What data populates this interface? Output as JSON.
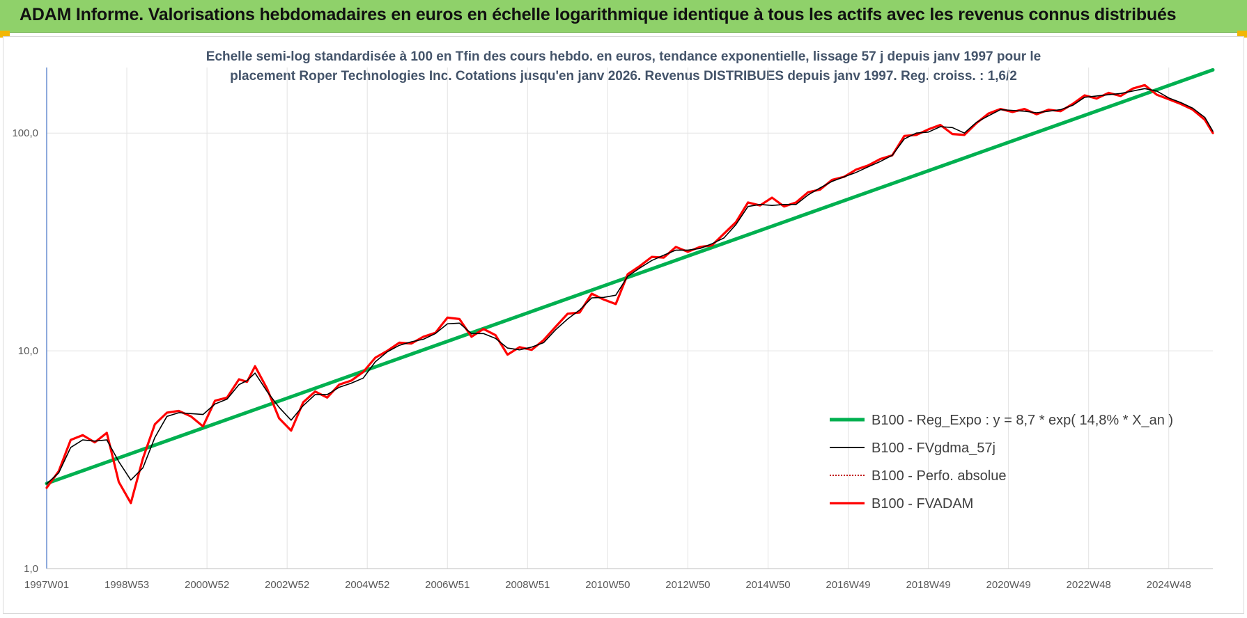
{
  "header": {
    "title": "ADAM Informe. Valorisations hebdomadaires en euros en échelle logarithmique identique à tous les actifs avec les revenus connus distribués"
  },
  "colors": {
    "banner": "#8fd16a",
    "accent_corner": "#f2b705",
    "regression": "#00b050",
    "smoothed": "#000000",
    "perf_absolue": "#c00000",
    "fvadam": "#ff0000",
    "subtitle": "#44546a"
  },
  "chart_data": {
    "type": "line",
    "title_lines": [
      "Echelle semi-log standardisée à 100 en Tfin des cours hebdo. en euros, tendance exponentielle, lissage 57 j depuis janv 1997 pour le",
      "placement Roper Technologies Inc. Cotations jusqu'en janv 2026. Revenus DISTRIBUES depuis janv 1997. Reg. croiss. : 1,6/2"
    ],
    "y_scale": "log",
    "ylim": [
      1,
      200
    ],
    "y_ticks": [
      {
        "value": 1,
        "label": "1,0"
      },
      {
        "value": 10,
        "label": "10,0"
      },
      {
        "value": 100,
        "label": "100,0"
      }
    ],
    "xlim": [
      1997.0,
      2026.1
    ],
    "x_ticks": [
      {
        "x": 1997.0,
        "label": "1997W01"
      },
      {
        "x": 1999.0,
        "label": "1998W53"
      },
      {
        "x": 2001.0,
        "label": "2000W52"
      },
      {
        "x": 2003.0,
        "label": "2002W52"
      },
      {
        "x": 2005.0,
        "label": "2004W52"
      },
      {
        "x": 2007.0,
        "label": "2006W51"
      },
      {
        "x": 2009.0,
        "label": "2008W51"
      },
      {
        "x": 2011.0,
        "label": "2010W50"
      },
      {
        "x": 2013.0,
        "label": "2012W50"
      },
      {
        "x": 2015.0,
        "label": "2014W50"
      },
      {
        "x": 2017.0,
        "label": "2016W49"
      },
      {
        "x": 2019.0,
        "label": "2018W49"
      },
      {
        "x": 2021.0,
        "label": "2020W49"
      },
      {
        "x": 2023.0,
        "label": "2022W48"
      },
      {
        "x": 2025.0,
        "label": "2024W48"
      }
    ],
    "grid": true,
    "legend_position": "bottom-right",
    "series": [
      {
        "name": "B100 - Reg_Expo : y = 8,7 * exp( 14,8% *  X_an )",
        "key": "reg",
        "x": [
          1997.0,
          2026.1
        ],
        "y": [
          2.46,
          195
        ]
      },
      {
        "name": "B100 - FVgdma_57j",
        "key": "sma",
        "x": [
          1997.0,
          1997.3,
          1997.6,
          1997.9,
          1998.2,
          1998.5,
          1998.8,
          1999.1,
          1999.4,
          1999.7,
          2000.0,
          2000.3,
          2000.6,
          2000.9,
          2001.2,
          2001.5,
          2001.8,
          2002.0,
          2002.2,
          2002.5,
          2002.8,
          2003.1,
          2003.4,
          2003.7,
          2004.0,
          2004.3,
          2004.6,
          2004.9,
          2005.2,
          2005.5,
          2005.8,
          2006.1,
          2006.4,
          2006.7,
          2007.0,
          2007.3,
          2007.6,
          2007.9,
          2008.2,
          2008.5,
          2008.8,
          2009.1,
          2009.4,
          2009.7,
          2010.0,
          2010.3,
          2010.6,
          2010.9,
          2011.2,
          2011.5,
          2011.8,
          2012.1,
          2012.4,
          2012.7,
          2013.0,
          2013.3,
          2013.6,
          2013.9,
          2014.2,
          2014.5,
          2014.8,
          2015.1,
          2015.4,
          2015.7,
          2016.0,
          2016.3,
          2016.6,
          2016.9,
          2017.2,
          2017.5,
          2017.8,
          2018.1,
          2018.4,
          2018.7,
          2019.0,
          2019.3,
          2019.6,
          2019.9,
          2020.2,
          2020.5,
          2020.8,
          2021.1,
          2021.4,
          2021.7,
          2022.0,
          2022.3,
          2022.6,
          2022.9,
          2023.2,
          2023.5,
          2023.8,
          2024.1,
          2024.4,
          2024.7,
          2025.0,
          2025.3,
          2025.6,
          2025.9,
          2026.1
        ],
        "y": [
          2.45,
          2.75,
          3.6,
          3.9,
          3.85,
          3.9,
          3.1,
          2.55,
          2.9,
          4.0,
          5.0,
          5.2,
          5.15,
          5.1,
          5.7,
          6.0,
          7.0,
          7.3,
          7.9,
          6.5,
          5.5,
          4.8,
          5.6,
          6.3,
          6.3,
          6.8,
          7.1,
          7.5,
          8.9,
          9.9,
          10.6,
          11.0,
          11.3,
          12.0,
          13.3,
          13.4,
          12.0,
          12.0,
          11.4,
          10.3,
          10.1,
          10.4,
          10.9,
          12.5,
          14.0,
          15.4,
          17.5,
          17.6,
          18.0,
          22.0,
          24.0,
          26.0,
          27.5,
          29.0,
          29.0,
          29.5,
          31.0,
          33.0,
          38.0,
          46.0,
          47.0,
          46.5,
          47.0,
          47.0,
          52.0,
          56.0,
          60.0,
          63.0,
          66.0,
          70.0,
          74.0,
          79.0,
          94.0,
          100.0,
          101.0,
          107.0,
          106.0,
          100.0,
          112.0,
          120.0,
          128.0,
          127.0,
          126.0,
          124.0,
          126.0,
          128.0,
          134.0,
          146.0,
          148.0,
          150.0,
          152.0,
          156.0,
          160.0,
          156.0,
          145.0,
          138.0,
          130.0,
          118.0,
          102.0
        ]
      },
      {
        "name": "B100 - Perfo. absolue",
        "key": "perf",
        "x": [
          1997.0,
          1997.3,
          1997.6,
          1997.9,
          1998.2,
          1998.5,
          1998.8,
          1999.1,
          1999.4,
          1999.7,
          2000.0,
          2000.3,
          2000.6,
          2000.9,
          2001.2,
          2001.5,
          2001.8,
          2002.0,
          2002.2,
          2002.5,
          2002.8,
          2003.1,
          2003.4,
          2003.7,
          2004.0,
          2004.3,
          2004.6,
          2004.9,
          2005.2,
          2005.5,
          2005.8,
          2006.1,
          2006.4,
          2006.7,
          2007.0,
          2007.3,
          2007.6,
          2007.9,
          2008.2,
          2008.5,
          2008.8,
          2009.1,
          2009.4,
          2009.7,
          2010.0,
          2010.3,
          2010.6,
          2010.9,
          2011.2,
          2011.5,
          2011.8,
          2012.1,
          2012.4,
          2012.7,
          2013.0,
          2013.3,
          2013.6,
          2013.9,
          2014.2,
          2014.5,
          2014.8,
          2015.1,
          2015.4,
          2015.7,
          2016.0,
          2016.3,
          2016.6,
          2016.9,
          2017.2,
          2017.5,
          2017.8,
          2018.1,
          2018.4,
          2018.7,
          2019.0,
          2019.3,
          2019.6,
          2019.9,
          2020.2,
          2020.5,
          2020.8,
          2021.1,
          2021.4,
          2021.7,
          2022.0,
          2022.3,
          2022.6,
          2022.9,
          2023.2,
          2023.5,
          2023.8,
          2024.1,
          2024.4,
          2024.7,
          2025.0,
          2025.3,
          2025.6,
          2025.9,
          2026.1
        ],
        "y": [
          2.35,
          2.8,
          3.9,
          4.1,
          3.8,
          4.2,
          2.5,
          2.0,
          3.2,
          4.6,
          5.2,
          5.3,
          5.0,
          4.5,
          5.9,
          6.1,
          7.4,
          7.2,
          8.5,
          6.7,
          4.9,
          4.3,
          5.8,
          6.5,
          6.1,
          7.0,
          7.3,
          8.0,
          9.3,
          10.0,
          10.9,
          10.8,
          11.6,
          12.1,
          14.2,
          14.0,
          11.6,
          12.6,
          11.8,
          9.6,
          10.4,
          10.1,
          11.2,
          12.9,
          14.8,
          15.0,
          18.3,
          17.2,
          16.4,
          22.5,
          24.5,
          27.0,
          26.8,
          30.0,
          28.5,
          30.0,
          30.5,
          34.5,
          39.0,
          48.0,
          46.5,
          50.5,
          46.0,
          48.0,
          53.5,
          55.0,
          61.0,
          63.0,
          68.0,
          71.0,
          76.0,
          79.0,
          97.0,
          98.0,
          104.0,
          109.0,
          99.0,
          98.0,
          111.0,
          123.0,
          129.0,
          125.0,
          129.0,
          122.0,
          128.0,
          126.0,
          136.0,
          149.0,
          144.0,
          153.0,
          148.0,
          160.0,
          166.0,
          150.0,
          143.0,
          136.0,
          128.0,
          115.0,
          100.0
        ]
      },
      {
        "name": "B100 - FVADAM",
        "key": "fvadam",
        "x": [
          1997.0,
          1997.3,
          1997.6,
          1997.9,
          1998.2,
          1998.5,
          1998.8,
          1999.1,
          1999.4,
          1999.7,
          2000.0,
          2000.3,
          2000.6,
          2000.9,
          2001.2,
          2001.5,
          2001.8,
          2002.0,
          2002.2,
          2002.5,
          2002.8,
          2003.1,
          2003.4,
          2003.7,
          2004.0,
          2004.3,
          2004.6,
          2004.9,
          2005.2,
          2005.5,
          2005.8,
          2006.1,
          2006.4,
          2006.7,
          2007.0,
          2007.3,
          2007.6,
          2007.9,
          2008.2,
          2008.5,
          2008.8,
          2009.1,
          2009.4,
          2009.7,
          2010.0,
          2010.3,
          2010.6,
          2010.9,
          2011.2,
          2011.5,
          2011.8,
          2012.1,
          2012.4,
          2012.7,
          2013.0,
          2013.3,
          2013.6,
          2013.9,
          2014.2,
          2014.5,
          2014.8,
          2015.1,
          2015.4,
          2015.7,
          2016.0,
          2016.3,
          2016.6,
          2016.9,
          2017.2,
          2017.5,
          2017.8,
          2018.1,
          2018.4,
          2018.7,
          2019.0,
          2019.3,
          2019.6,
          2019.9,
          2020.2,
          2020.5,
          2020.8,
          2021.1,
          2021.4,
          2021.7,
          2022.0,
          2022.3,
          2022.6,
          2022.9,
          2023.2,
          2023.5,
          2023.8,
          2024.1,
          2024.4,
          2024.7,
          2025.0,
          2025.3,
          2025.6,
          2025.9,
          2026.1
        ],
        "y": [
          2.35,
          2.8,
          3.9,
          4.1,
          3.8,
          4.2,
          2.5,
          2.0,
          3.2,
          4.6,
          5.2,
          5.3,
          5.0,
          4.5,
          5.9,
          6.1,
          7.4,
          7.2,
          8.5,
          6.7,
          4.9,
          4.3,
          5.8,
          6.5,
          6.1,
          7.0,
          7.3,
          8.0,
          9.3,
          10.0,
          10.9,
          10.8,
          11.6,
          12.1,
          14.2,
          14.0,
          11.6,
          12.6,
          11.8,
          9.6,
          10.4,
          10.1,
          11.2,
          12.9,
          14.8,
          15.0,
          18.3,
          17.2,
          16.4,
          22.5,
          24.5,
          27.0,
          26.8,
          30.0,
          28.5,
          30.0,
          30.5,
          34.5,
          39.0,
          48.0,
          46.5,
          50.5,
          46.0,
          48.0,
          53.5,
          55.0,
          61.0,
          63.0,
          68.0,
          71.0,
          76.0,
          79.0,
          97.0,
          98.0,
          104.0,
          109.0,
          99.0,
          98.0,
          111.0,
          123.0,
          129.0,
          125.0,
          129.0,
          122.0,
          128.0,
          126.0,
          136.0,
          149.0,
          144.0,
          153.0,
          148.0,
          160.0,
          166.0,
          150.0,
          143.0,
          136.0,
          128.0,
          115.0,
          100.0
        ]
      }
    ]
  }
}
